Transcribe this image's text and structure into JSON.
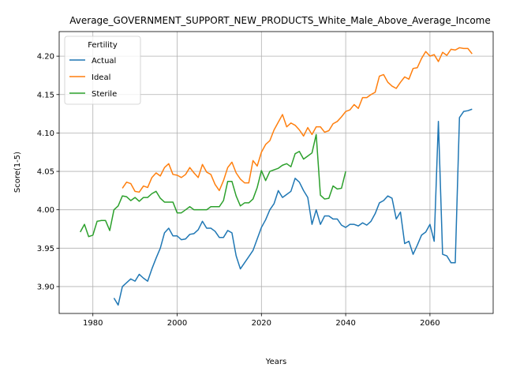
{
  "chart_data": {
    "type": "line",
    "title": "Average_GOVERNMENT_SUPPORT_NEW_PRODUCTS_White_Male_Above_Average_Income",
    "xlabel": "Years",
    "ylabel": "Score(1-5)",
    "xlim": [
      1972,
      2075
    ],
    "ylim": [
      3.865,
      4.232
    ],
    "xticks": [
      1980,
      2000,
      2020,
      2040,
      2060
    ],
    "yticks": [
      3.9,
      3.95,
      4.0,
      4.05,
      4.1,
      4.15,
      4.2
    ],
    "grid": true,
    "legend": {
      "title": "Fertility",
      "placement": "top-left"
    },
    "series": [
      {
        "name": "Actual",
        "color": "#1f77b4",
        "x": [
          1985,
          1986,
          1987,
          1988,
          1989,
          1990,
          1991,
          1992,
          1993,
          1994,
          1995,
          1996,
          1997,
          1998,
          1999,
          2000,
          2001,
          2002,
          2003,
          2004,
          2005,
          2006,
          2007,
          2008,
          2009,
          2010,
          2011,
          2012,
          2013,
          2014,
          2015,
          2016,
          2017,
          2018,
          2019,
          2020,
          2021,
          2022,
          2023,
          2024,
          2025,
          2026,
          2027,
          2028,
          2029,
          2030,
          2031,
          2032,
          2033,
          2034,
          2035,
          2036,
          2037,
          2038,
          2039,
          2040,
          2041,
          2042,
          2043,
          2044,
          2045,
          2046,
          2047,
          2048,
          2049,
          2050,
          2051,
          2052,
          2053,
          2054,
          2055,
          2056,
          2057,
          2058,
          2059,
          2060,
          2061,
          2062,
          2063,
          2064,
          2065,
          2066,
          2067,
          2068,
          2069,
          2070
        ],
        "values": [
          3.885,
          3.876,
          3.9,
          3.905,
          3.91,
          3.907,
          3.916,
          3.911,
          3.907,
          3.923,
          3.937,
          3.95,
          3.97,
          3.976,
          3.966,
          3.966,
          3.961,
          3.962,
          3.968,
          3.969,
          3.974,
          3.985,
          3.976,
          3.976,
          3.972,
          3.964,
          3.964,
          3.973,
          3.97,
          3.94,
          3.923,
          3.931,
          3.939,
          3.947,
          3.962,
          3.977,
          3.987,
          4.0,
          4.008,
          4.025,
          4.016,
          4.02,
          4.024,
          4.041,
          4.036,
          4.025,
          4.016,
          3.981,
          4.0,
          3.981,
          3.992,
          3.992,
          3.988,
          3.988,
          3.98,
          3.977,
          3.981,
          3.981,
          3.979,
          3.983,
          3.98,
          3.985,
          3.995,
          4.009,
          4.012,
          4.018,
          4.015,
          3.988,
          3.997,
          3.956,
          3.959,
          3.942,
          3.954,
          3.967,
          3.971,
          3.981,
          3.959,
          4.115,
          3.942,
          3.94,
          3.931,
          3.931,
          4.12,
          4.128,
          4.129,
          4.131
        ]
      },
      {
        "name": "Ideal",
        "color": "#ff7f0e",
        "x": [
          1987,
          1988,
          1989,
          1990,
          1991,
          1992,
          1993,
          1994,
          1995,
          1996,
          1997,
          1998,
          1999,
          2000,
          2001,
          2002,
          2003,
          2004,
          2005,
          2006,
          2007,
          2008,
          2009,
          2010,
          2011,
          2012,
          2013,
          2014,
          2015,
          2016,
          2017,
          2018,
          2019,
          2020,
          2021,
          2022,
          2023,
          2024,
          2025,
          2026,
          2027,
          2028,
          2029,
          2030,
          2031,
          2032,
          2033,
          2034,
          2035,
          2036,
          2037,
          2038,
          2039,
          2040,
          2041,
          2042,
          2043,
          2044,
          2045,
          2046,
          2047,
          2048,
          2049,
          2050,
          2051,
          2052,
          2053,
          2054,
          2055,
          2056,
          2057,
          2058,
          2059,
          2060,
          2061,
          2062,
          2063,
          2064,
          2065,
          2066,
          2067,
          2068,
          2069,
          2070
        ],
        "values": [
          4.028,
          4.036,
          4.034,
          4.024,
          4.023,
          4.031,
          4.029,
          4.042,
          4.048,
          4.044,
          4.055,
          4.06,
          4.046,
          4.045,
          4.042,
          4.046,
          4.055,
          4.048,
          4.042,
          4.059,
          4.049,
          4.046,
          4.033,
          4.025,
          4.038,
          4.055,
          4.062,
          4.048,
          4.04,
          4.035,
          4.035,
          4.064,
          4.057,
          4.075,
          4.085,
          4.09,
          4.104,
          4.114,
          4.124,
          4.108,
          4.113,
          4.11,
          4.104,
          4.096,
          4.107,
          4.098,
          4.108,
          4.108,
          4.101,
          4.103,
          4.112,
          4.115,
          4.121,
          4.128,
          4.13,
          4.137,
          4.132,
          4.146,
          4.146,
          4.15,
          4.153,
          4.174,
          4.176,
          4.166,
          4.161,
          4.158,
          4.166,
          4.173,
          4.17,
          4.184,
          4.185,
          4.197,
          4.206,
          4.2,
          4.202,
          4.193,
          4.205,
          4.201,
          4.209,
          4.208,
          4.211,
          4.21,
          4.21,
          4.203
        ]
      },
      {
        "name": "Sterile",
        "color": "#2ca02c",
        "x": [
          1977,
          1978,
          1979,
          1980,
          1981,
          1982,
          1983,
          1984,
          1985,
          1986,
          1987,
          1988,
          1989,
          1990,
          1991,
          1992,
          1993,
          1994,
          1995,
          1996,
          1997,
          1998,
          1999,
          2000,
          2001,
          2002,
          2003,
          2004,
          2005,
          2006,
          2007,
          2008,
          2009,
          2010,
          2011,
          2012,
          2013,
          2014,
          2015,
          2016,
          2017,
          2018,
          2019,
          2020,
          2021,
          2022,
          2023,
          2024,
          2025,
          2026,
          2027,
          2028,
          2029,
          2030,
          2031,
          2032,
          2033,
          2034,
          2035,
          2036,
          2037,
          2038,
          2039,
          2040
        ],
        "values": [
          3.971,
          3.981,
          3.965,
          3.967,
          3.985,
          3.986,
          3.986,
          3.973,
          4.0,
          4.005,
          4.018,
          4.017,
          4.012,
          4.016,
          4.011,
          4.016,
          4.016,
          4.021,
          4.024,
          4.015,
          4.01,
          4.01,
          4.01,
          3.996,
          3.996,
          4.0,
          4.004,
          4.0,
          4.0,
          4.0,
          4.0,
          4.004,
          4.004,
          4.004,
          4.012,
          4.037,
          4.037,
          4.018,
          4.005,
          4.009,
          4.009,
          4.014,
          4.029,
          4.051,
          4.038,
          4.05,
          4.052,
          4.054,
          4.058,
          4.06,
          4.056,
          4.073,
          4.076,
          4.066,
          4.07,
          4.074,
          4.098,
          4.019,
          4.014,
          4.015,
          4.031,
          4.027,
          4.028,
          4.05
        ]
      }
    ]
  }
}
